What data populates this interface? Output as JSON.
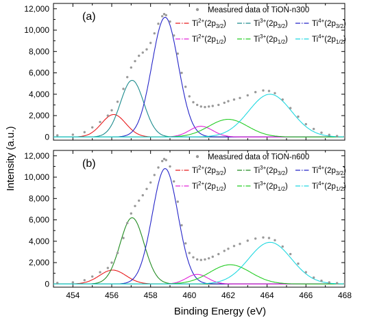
{
  "chart_data": {
    "type": "line",
    "shared_x_axis": {
      "label": "Binding Energy (eV)",
      "range": [
        453,
        468
      ],
      "ticks": [
        454,
        456,
        458,
        460,
        462,
        464,
        466,
        468
      ],
      "tick_labels": [
        "454",
        "456",
        "458",
        "460",
        "462",
        "464",
        "466",
        "468"
      ]
    },
    "y_axis_label": "Intensity (a.u.)",
    "panels": [
      {
        "panel_label": "(a)",
        "ylim": [
          -300,
          12500
        ],
        "yticks": [
          0,
          2000,
          4000,
          6000,
          8000,
          10000,
          12000
        ],
        "ytick_labels": [
          "0",
          "2,000",
          "4,000",
          "6,000",
          "8,000",
          "10,000",
          "12,000"
        ],
        "measured": {
          "name": "Measured data of TiON-n300",
          "color": "#999999",
          "x": [
            453.2,
            454.0,
            454.6,
            455.0,
            455.4,
            455.8,
            456.0,
            456.3,
            456.6,
            456.8,
            457.0,
            457.2,
            457.4,
            457.6,
            457.8,
            458.0,
            458.2,
            458.4,
            458.6,
            458.7,
            458.8,
            459.0,
            459.2,
            459.4,
            459.6,
            459.8,
            460.0,
            460.2,
            460.4,
            460.6,
            460.8,
            461.0,
            461.2,
            461.5,
            461.8,
            462.0,
            462.3,
            462.6,
            463.0,
            463.4,
            463.8,
            464.1,
            464.4,
            464.8,
            465.2,
            465.6,
            466.0,
            466.4,
            466.8,
            467.2,
            467.6,
            468.0
          ],
          "y": [
            150,
            220,
            450,
            900,
            1400,
            2000,
            2500,
            3300,
            4500,
            5600,
            6500,
            7100,
            7600,
            7900,
            8200,
            8800,
            9700,
            10600,
            11300,
            11500,
            11400,
            10800,
            9500,
            7800,
            6000,
            4700,
            3800,
            3250,
            3000,
            2850,
            2800,
            2850,
            2900,
            3000,
            3200,
            3350,
            3500,
            3650,
            3900,
            4200,
            4350,
            4300,
            4100,
            3500,
            2700,
            1900,
            1200,
            750,
            400,
            200,
            90,
            40
          ]
        },
        "components": [
          {
            "name": "Ti2+(2p3/2)",
            "sup": "2+",
            "sub": "3/2",
            "color": "#e8191b",
            "center": 456.1,
            "height": 2100,
            "sigma": 0.62
          },
          {
            "name": "Ti3+(2p3/2)",
            "sup": "3+",
            "sub": "3/2",
            "color": "#1a8a8c",
            "center": 457.05,
            "height": 5300,
            "sigma": 0.6
          },
          {
            "name": "Ti4+(2p3/2)",
            "sup": "4+",
            "sub": "3/2",
            "color": "#2323c8",
            "center": 458.75,
            "height": 11200,
            "sigma": 0.68
          },
          {
            "name": "Ti2+(2p1/2)",
            "sup": "2+",
            "sub": "1/2",
            "color": "#e020d8",
            "center": 460.6,
            "height": 1000,
            "sigma": 0.6
          },
          {
            "name": "Ti3+(2p1/2)",
            "sup": "3+",
            "sub": "1/2",
            "color": "#22cc22",
            "center": 462.0,
            "height": 1650,
            "sigma": 1.0
          },
          {
            "name": "Ti4+(2p1/2)",
            "sup": "4+",
            "sub": "1/2",
            "color": "#1fd8e0",
            "center": 464.15,
            "height": 4000,
            "sigma": 1.1
          }
        ]
      },
      {
        "panel_label": "(b)",
        "ylim": [
          -300,
          12500
        ],
        "yticks": [
          0,
          2000,
          4000,
          6000,
          8000,
          10000,
          12000
        ],
        "ytick_labels": [
          "0",
          "2,000",
          "4,000",
          "6,000",
          "8,000",
          "10,000",
          "12,000"
        ],
        "measured": {
          "name": "Measured data of TiON-n600",
          "color": "#999999",
          "x": [
            453.2,
            454.0,
            454.6,
            455.0,
            455.4,
            455.8,
            456.0,
            456.3,
            456.6,
            456.8,
            457.0,
            457.2,
            457.4,
            457.6,
            457.8,
            458.0,
            458.2,
            458.4,
            458.6,
            458.7,
            458.8,
            459.0,
            459.2,
            459.4,
            459.6,
            459.8,
            460.0,
            460.2,
            460.4,
            460.6,
            460.8,
            461.0,
            461.2,
            461.5,
            461.8,
            462.0,
            462.3,
            462.6,
            463.0,
            463.4,
            463.8,
            464.1,
            464.4,
            464.8,
            465.2,
            465.6,
            466.0,
            466.4,
            466.8,
            467.2,
            467.6,
            468.0
          ],
          "y": [
            100,
            150,
            350,
            700,
            1100,
            1500,
            2000,
            2900,
            4300,
            5700,
            6600,
            7300,
            7800,
            8300,
            8900,
            9500,
            10200,
            10900,
            11500,
            11700,
            11600,
            11000,
            9600,
            7700,
            5500,
            3800,
            2900,
            2500,
            2300,
            2250,
            2300,
            2400,
            2550,
            2800,
            3100,
            3300,
            3550,
            3750,
            4050,
            4250,
            4350,
            4300,
            4100,
            3500,
            2800,
            1900,
            1100,
            600,
            300,
            150,
            80,
            40
          ]
        },
        "components": [
          {
            "name": "Ti2+(2p3/2)",
            "sup": "2+",
            "sub": "3/2",
            "color": "#e8191b",
            "center": 456.05,
            "height": 1300,
            "sigma": 0.68
          },
          {
            "name": "Ti3+(2p3/2)",
            "sup": "3+",
            "sub": "3/2",
            "color": "#1f8a1f",
            "center": 457.05,
            "height": 6200,
            "sigma": 0.62
          },
          {
            "name": "Ti4+(2p3/2)",
            "sup": "4+",
            "sub": "3/2",
            "color": "#2323c8",
            "center": 458.75,
            "height": 10800,
            "sigma": 0.66
          },
          {
            "name": "Ti2+(2p1/2)",
            "sup": "2+",
            "sub": "1/2",
            "color": "#e020d8",
            "center": 460.4,
            "height": 900,
            "sigma": 0.55
          },
          {
            "name": "Ti3+(2p1/2)",
            "sup": "3+",
            "sub": "1/2",
            "color": "#22cc22",
            "center": 462.1,
            "height": 1800,
            "sigma": 1.05
          },
          {
            "name": "Ti4+(2p1/2)",
            "sup": "4+",
            "sub": "1/2",
            "color": "#1fd8e0",
            "center": 464.15,
            "height": 3900,
            "sigma": 1.1
          }
        ]
      }
    ]
  }
}
